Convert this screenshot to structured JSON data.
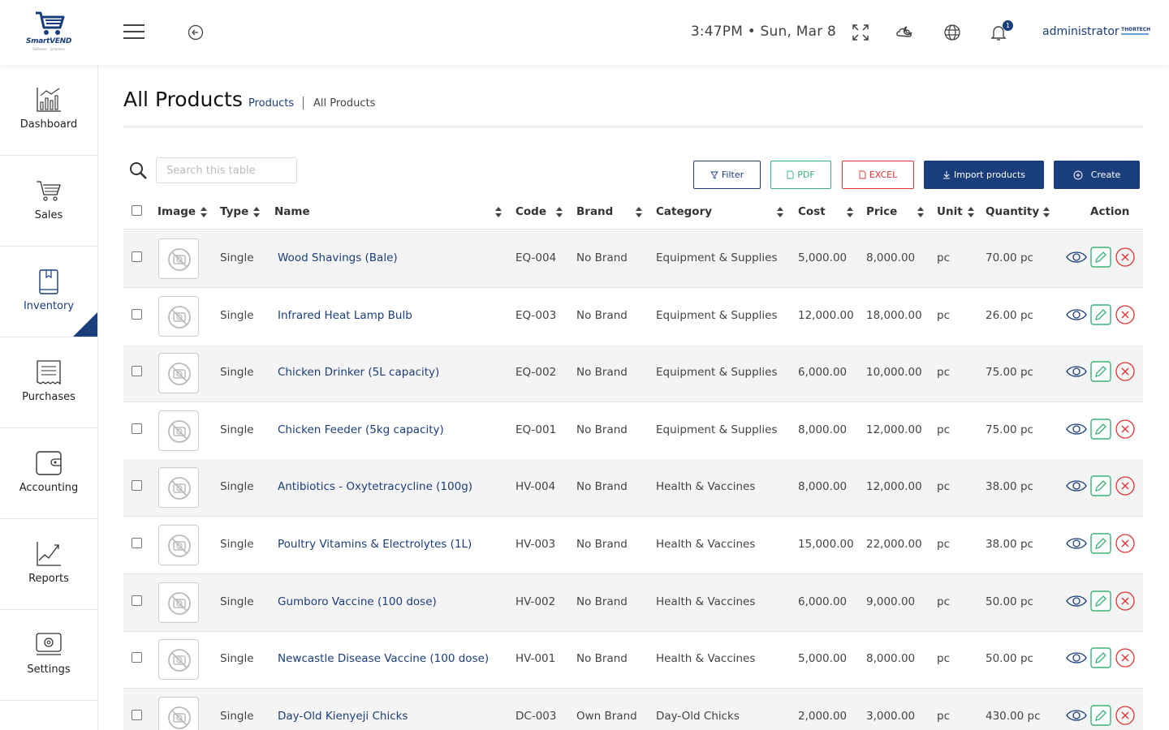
{
  "header": {
    "logo_text": "SmartVEND",
    "logo_sub": "Software · Solutions",
    "clock": "3:47PM • Sun, Mar 8",
    "notification_count": "1",
    "user": "administrator",
    "company_logo_text": "THORTECH"
  },
  "sidebar": {
    "items": [
      {
        "label": "Dashboard",
        "icon": "bar-chart-icon"
      },
      {
        "label": "Sales",
        "icon": "cart-icon"
      },
      {
        "label": "Inventory",
        "icon": "book-icon",
        "active": true
      },
      {
        "label": "Purchases",
        "icon": "receipt-icon"
      },
      {
        "label": "Accounting",
        "icon": "wallet-icon"
      },
      {
        "label": "Reports",
        "icon": "line-chart-icon"
      },
      {
        "label": "Settings",
        "icon": "gear-icon"
      }
    ]
  },
  "page": {
    "title": "All Products",
    "breadcrumb_link": "Products",
    "breadcrumb_current": "All Products"
  },
  "toolbar": {
    "search_placeholder": "Search this table",
    "filter": "Filter",
    "pdf": "PDF",
    "excel": "EXCEL",
    "import": "Import products",
    "create": "Create"
  },
  "table": {
    "headers": {
      "image": "Image",
      "type": "Type",
      "name": "Name",
      "code": "Code",
      "brand": "Brand",
      "category": "Category",
      "cost": "Cost",
      "price": "Price",
      "unit": "Unit",
      "quantity": "Quantity",
      "action": "Action"
    },
    "rows": [
      {
        "type": "Single",
        "name": "Wood Shavings (Bale)",
        "code": "EQ-004",
        "brand": "No Brand",
        "category": "Equipment & Supplies",
        "cost": "5,000.00",
        "price": "8,000.00",
        "unit": "pc",
        "quantity": "70.00 pc"
      },
      {
        "type": "Single",
        "name": "Infrared Heat Lamp Bulb",
        "code": "EQ-003",
        "brand": "No Brand",
        "category": "Equipment & Supplies",
        "cost": "12,000.00",
        "price": "18,000.00",
        "unit": "pc",
        "quantity": "26.00 pc"
      },
      {
        "type": "Single",
        "name": "Chicken Drinker (5L capacity)",
        "code": "EQ-002",
        "brand": "No Brand",
        "category": "Equipment & Supplies",
        "cost": "6,000.00",
        "price": "10,000.00",
        "unit": "pc",
        "quantity": "75.00 pc"
      },
      {
        "type": "Single",
        "name": "Chicken Feeder (5kg capacity)",
        "code": "EQ-001",
        "brand": "No Brand",
        "category": "Equipment & Supplies",
        "cost": "8,000.00",
        "price": "12,000.00",
        "unit": "pc",
        "quantity": "75.00 pc"
      },
      {
        "type": "Single",
        "name": "Antibiotics - Oxytetracycline (100g)",
        "code": "HV-004",
        "brand": "No Brand",
        "category": "Health & Vaccines",
        "cost": "8,000.00",
        "price": "12,000.00",
        "unit": "pc",
        "quantity": "38.00 pc"
      },
      {
        "type": "Single",
        "name": "Poultry Vitamins & Electrolytes (1L)",
        "code": "HV-003",
        "brand": "No Brand",
        "category": "Health & Vaccines",
        "cost": "15,000.00",
        "price": "22,000.00",
        "unit": "pc",
        "quantity": "38.00 pc"
      },
      {
        "type": "Single",
        "name": "Gumboro Vaccine (100 dose)",
        "code": "HV-002",
        "brand": "No Brand",
        "category": "Health & Vaccines",
        "cost": "6,000.00",
        "price": "9,000.00",
        "unit": "pc",
        "quantity": "50.00 pc"
      },
      {
        "type": "Single",
        "name": "Newcastle Disease Vaccine (100 dose)",
        "code": "HV-001",
        "brand": "No Brand",
        "category": "Health & Vaccines",
        "cost": "5,000.00",
        "price": "8,000.00",
        "unit": "pc",
        "quantity": "50.00 pc"
      },
      {
        "type": "Single",
        "name": "Day-Old Kienyeji Chicks",
        "code": "DC-003",
        "brand": "Own Brand",
        "category": "Day-Old Chicks",
        "cost": "2,000.00",
        "price": "3,000.00",
        "unit": "pc",
        "quantity": "430.00 pc"
      }
    ]
  },
  "colors": {
    "primary": "#1a3e7c",
    "success": "#3bb07a",
    "danger": "#dd3333",
    "stripe": "#f4f4f4"
  }
}
